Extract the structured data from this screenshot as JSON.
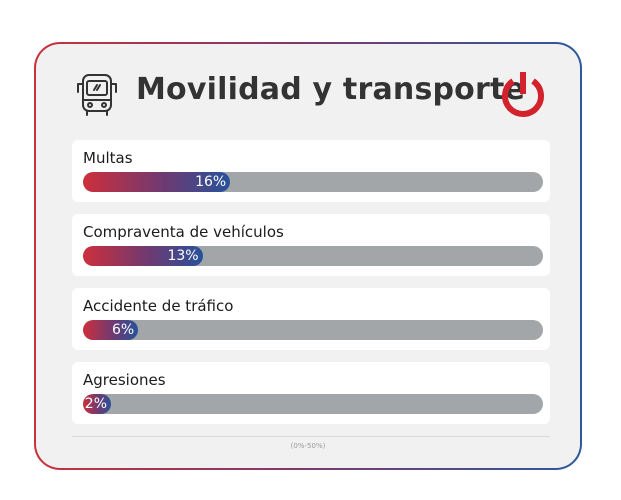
{
  "header": {
    "title": "Movilidad y transporte"
  },
  "footer": {
    "scale_note": "(0%-50%)"
  },
  "colors": {
    "gradient_start": "#cd2f3c",
    "gradient_end": "#27529a",
    "track": "#a2a6a9",
    "card_background": "#f1f1f1"
  },
  "icons": [
    "bus-icon",
    "power-icon"
  ],
  "chart_data": {
    "type": "bar",
    "orientation": "horizontal",
    "scale_max": 50,
    "categories": [
      "Multas",
      "Compraventa de vehículos",
      "Accidente de tráfico",
      "Agresiones"
    ],
    "values": [
      16,
      13,
      6,
      2
    ],
    "value_labels": [
      "16%",
      "13%",
      "6%",
      "2%"
    ]
  }
}
